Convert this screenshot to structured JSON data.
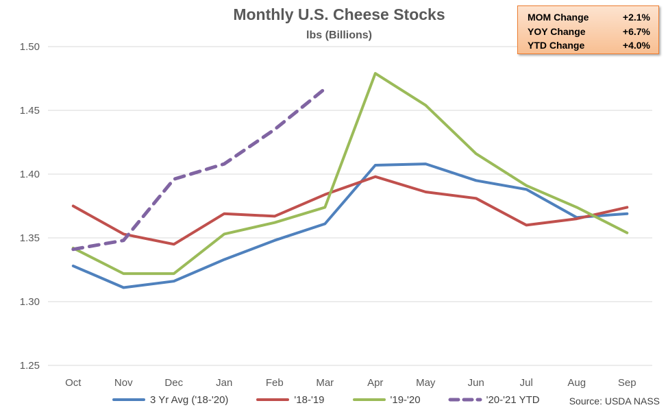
{
  "chart_data": {
    "type": "line",
    "title": "Monthly U.S. Cheese Stocks",
    "subtitle": "lbs (Billions)",
    "categories": [
      "Oct",
      "Nov",
      "Dec",
      "Jan",
      "Feb",
      "Mar",
      "Apr",
      "May",
      "Jun",
      "Jul",
      "Aug",
      "Sep"
    ],
    "ylim": [
      1.25,
      1.5
    ],
    "yticks": [
      "1.25",
      "1.30",
      "1.35",
      "1.40",
      "1.45",
      "1.50"
    ],
    "grid": true,
    "legend_position": "bottom",
    "series": [
      {
        "name": "3 Yr Avg ('18-'20)",
        "color": "#4f81bd",
        "dashed": false,
        "values": [
          1.328,
          1.311,
          1.316,
          1.333,
          1.348,
          1.361,
          1.407,
          1.408,
          1.395,
          1.388,
          1.366,
          1.369
        ]
      },
      {
        "name": "'18-'19",
        "color": "#c0504d",
        "dashed": false,
        "values": [
          1.375,
          1.353,
          1.345,
          1.369,
          1.367,
          1.384,
          1.398,
          1.386,
          1.381,
          1.36,
          1.365,
          1.374
        ]
      },
      {
        "name": "'19-'20",
        "color": "#9bbb59",
        "dashed": false,
        "values": [
          1.342,
          1.322,
          1.322,
          1.353,
          1.362,
          1.374,
          1.479,
          1.454,
          1.416,
          1.391,
          1.374,
          1.354
        ]
      },
      {
        "name": "'20-'21 YTD",
        "color": "#8064a2",
        "dashed": true,
        "values": [
          1.341,
          1.348,
          1.396,
          1.408,
          1.435,
          1.467,
          null,
          null,
          null,
          null,
          null,
          null
        ]
      }
    ]
  },
  "stats_box": {
    "rows": [
      {
        "label": "MOM Change",
        "value": "+2.1%"
      },
      {
        "label": "YOY Change",
        "value": "+6.7%"
      },
      {
        "label": "YTD Change",
        "value": "+4.0%"
      }
    ],
    "background": "#fbd4b4",
    "border": "#ed7d31"
  },
  "source": "Source: USDA NASS"
}
